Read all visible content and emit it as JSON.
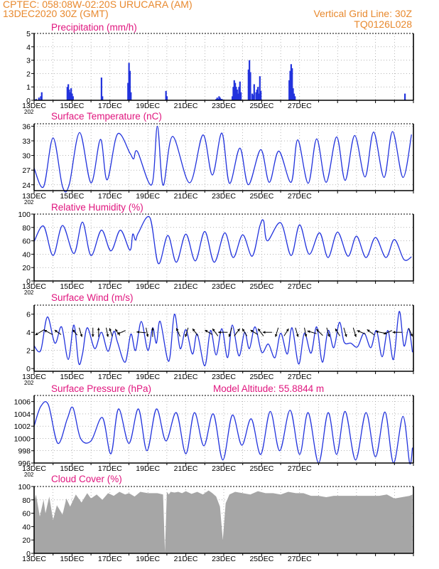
{
  "header": {
    "left_line1": "CPTEC:   058:08W-02:20S   URUCARA (AM)",
    "left_line2": "13DEC2020 30Z (GMT)",
    "right_line1": "Vertical Grid Line: 30Z",
    "right_line2": "TQ0126L028"
  },
  "colors": {
    "line": "#2233dd",
    "bar": "#2233dd",
    "cloud": "#a6a6a6",
    "title": "#e0157e",
    "header": "#e8892e",
    "grid": "#888888"
  },
  "x_tick_labels": [
    "13DEC",
    "15DEC",
    "17DEC",
    "19DEC",
    "21DEC",
    "23DEC",
    "25DEC",
    "27DEC"
  ],
  "x_year_stub": "202",
  "chart_data": [
    {
      "type": "bar",
      "title": "Precipitation (mm/h)",
      "ylim": [
        0,
        5
      ],
      "yticks": [
        "0",
        "1",
        "2",
        "3",
        "4",
        "5"
      ],
      "x": [
        0.1,
        0.25,
        0.35,
        0.4,
        1.75,
        1.8,
        1.85,
        1.9,
        1.95,
        2.0,
        2.05,
        3.55,
        3.6,
        4.95,
        5.0,
        5.05,
        5.1,
        6.95,
        7.0,
        9.6,
        9.65,
        9.7,
        9.75,
        9.8,
        9.85,
        9.9,
        10.45,
        10.5,
        10.55,
        10.6,
        10.65,
        10.7,
        10.75,
        10.8,
        10.85,
        10.9,
        11.3,
        11.35,
        11.4,
        11.5,
        11.55,
        11.6,
        11.7,
        11.75,
        11.8,
        11.85,
        11.9,
        11.95,
        13.45,
        13.5,
        13.55,
        13.6,
        13.65,
        13.7,
        13.75,
        19.55
      ],
      "values": [
        0.1,
        0.2,
        0.3,
        0.6,
        1.0,
        1.2,
        0.8,
        0.6,
        0.9,
        0.5,
        0.3,
        1.7,
        0.3,
        1.3,
        2.8,
        2.2,
        0.6,
        0.7,
        0.3,
        0.1,
        0.2,
        0.1,
        0.3,
        0.2,
        0.1,
        0.1,
        0.3,
        1.0,
        1.5,
        1.3,
        1.0,
        0.8,
        0.5,
        1.0,
        1.4,
        0.6,
        2.3,
        3.0,
        2.1,
        0.5,
        0.4,
        1.2,
        0.6,
        0.8,
        1.0,
        0.5,
        1.8,
        0.7,
        1.5,
        2.2,
        2.7,
        2.4,
        0.9,
        0.5,
        0.3,
        0.5
      ]
    },
    {
      "type": "line",
      "title": "Surface Temperature (nC)",
      "ylim": [
        22.8,
        36.5
      ],
      "yticks": [
        "24",
        "27",
        "30",
        "33",
        "36"
      ],
      "ytick_values": [
        24,
        27,
        30,
        33,
        36
      ],
      "x": [
        0,
        0.5,
        1,
        1.5,
        1.85,
        2.4,
        3,
        3.5,
        3.85,
        4.4,
        5.05,
        5.25,
        5.45,
        6.2,
        6.5,
        6.8,
        7.3,
        8.2,
        8.9,
        9.4,
        9.9,
        10.3,
        10.85,
        11.3,
        11.95,
        12.4,
        12.9,
        13.55,
        13.9,
        14.45,
        14.9,
        15.4,
        15.95,
        16.4,
        16.9,
        17.45,
        17.9,
        18.45,
        18.9,
        19.45,
        19.9
      ],
      "values": [
        27.4,
        23.6,
        33.6,
        23.6,
        24.0,
        34.7,
        24.4,
        33.3,
        25.0,
        34.4,
        30.5,
        29.3,
        30.8,
        24.0,
        36.0,
        23.9,
        33.9,
        24.4,
        34.2,
        26.0,
        34.6,
        24.3,
        31.5,
        24.0,
        31.2,
        24.5,
        30.9,
        24.5,
        33.2,
        24.3,
        33.4,
        24.5,
        33.8,
        24.9,
        34.1,
        25.6,
        34.8,
        25.5,
        34.9,
        25.5,
        34.3
      ]
    },
    {
      "type": "line",
      "title": "Relative Humidity (%)",
      "ylim": [
        0,
        100
      ],
      "yticks": [
        "0",
        "20",
        "40",
        "60",
        "80",
        "100"
      ],
      "x": [
        0,
        0.5,
        1.0,
        1.5,
        2.1,
        2.55,
        3.0,
        3.55,
        4.05,
        4.55,
        5.05,
        5.2,
        5.35,
        5.5,
        6.1,
        6.55,
        7.05,
        7.5,
        8.0,
        8.5,
        9.0,
        9.5,
        10.05,
        10.5,
        11.0,
        11.5,
        11.9,
        12.1,
        12.3,
        13.0,
        13.55,
        14.0,
        14.5,
        15.05,
        15.5,
        16.0,
        16.55,
        17.0,
        17.5,
        18.0,
        18.55,
        19.0,
        19.5,
        19.9
      ],
      "values": [
        59,
        82,
        38,
        83,
        41,
        88,
        38,
        76,
        45,
        76,
        46,
        70,
        61,
        72,
        95,
        26,
        68,
        28,
        70,
        30,
        74,
        28,
        72,
        35,
        69,
        37,
        82,
        90,
        60,
        87,
        38,
        84,
        40,
        72,
        35,
        73,
        37,
        67,
        35,
        65,
        35,
        62,
        32,
        36
      ]
    },
    {
      "type": "line",
      "title": "Surface Wind (m/s)",
      "ylim": [
        -0.3,
        7.0
      ],
      "yticks": [
        "0",
        "2",
        "4",
        "6"
      ],
      "x": [
        0,
        0.35,
        0.7,
        1.1,
        1.45,
        1.8,
        2.1,
        2.35,
        2.55,
        2.8,
        3.2,
        3.55,
        3.9,
        4.2,
        4.4,
        4.8,
        5.1,
        5.35,
        5.65,
        6.0,
        6.25,
        6.45,
        6.65,
        7.1,
        7.4,
        7.7,
        8.0,
        8.35,
        8.6,
        9.0,
        9.3,
        9.6,
        9.9,
        10.2,
        10.45,
        10.8,
        11.1,
        11.35,
        11.65,
        12.0,
        12.35,
        12.7,
        13.0,
        13.35,
        13.6,
        13.95,
        14.25,
        14.6,
        14.9,
        15.2,
        15.5,
        15.8,
        16.1,
        16.35,
        16.7,
        17.05,
        17.4,
        17.75,
        18.05,
        18.35,
        18.65,
        18.95,
        19.25,
        19.5,
        19.75,
        19.95
      ],
      "values": [
        2.5,
        2.0,
        5.7,
        2.8,
        4.6,
        1.0,
        4.8,
        0.6,
        1.6,
        4.5,
        2.2,
        4.0,
        1.9,
        4.1,
        2.9,
        0.7,
        3.8,
        2.0,
        5.2,
        2.0,
        4.5,
        2.8,
        5.2,
        0.8,
        6.0,
        2.2,
        4.3,
        1.6,
        3.8,
        0.3,
        4.2,
        1.5,
        4.4,
        1.2,
        4.8,
        1.4,
        4.0,
        2.2,
        4.6,
        1.8,
        2.7,
        1.2,
        3.9,
        1.6,
        4.5,
        0.5,
        3.9,
        1.7,
        4.6,
        0.7,
        4.2,
        2.3,
        5.1,
        2.9,
        2.8,
        2.4,
        3.9,
        2.3,
        4.2,
        1.3,
        4.2,
        1.0,
        6.3,
        2.5,
        4.4,
        1.8
      ],
      "vectors": [
        {
          "x": 0.3,
          "u": -1,
          "v": -0.6
        },
        {
          "x": 0.75,
          "u": -0.9,
          "v": 0.5
        },
        {
          "x": 1.25,
          "u": -0.7,
          "v": 0.5
        },
        {
          "x": 2.15,
          "u": -0.5,
          "v": 0.6
        },
        {
          "x": 2.45,
          "u": 0.3,
          "v": -1
        },
        {
          "x": 3.1,
          "u": 0,
          "v": -1
        },
        {
          "x": 3.4,
          "u": 0,
          "v": 1
        },
        {
          "x": 3.85,
          "u": 0.2,
          "v": -1
        },
        {
          "x": 4.05,
          "u": -0.3,
          "v": 0.9
        },
        {
          "x": 4.4,
          "u": -0.5,
          "v": 0.7
        },
        {
          "x": 4.6,
          "u": -0.9,
          "v": -0.4
        },
        {
          "x": 5.65,
          "u": -1,
          "v": 0.1
        },
        {
          "x": 5.95,
          "u": 0.2,
          "v": -1
        },
        {
          "x": 6.25,
          "u": 0,
          "v": 1
        },
        {
          "x": 7.6,
          "u": -0.4,
          "v": 0.9
        },
        {
          "x": 8.05,
          "u": -0.3,
          "v": -1
        },
        {
          "x": 8.5,
          "u": -0.6,
          "v": 0.8
        },
        {
          "x": 9.2,
          "u": -0.8,
          "v": 0.5
        },
        {
          "x": 9.55,
          "u": -0.6,
          "v": 0.8
        },
        {
          "x": 9.95,
          "u": -1,
          "v": 0
        },
        {
          "x": 10.35,
          "u": -0.3,
          "v": -1
        },
        {
          "x": 10.7,
          "u": 0.6,
          "v": 0.8
        },
        {
          "x": 11.1,
          "u": -0.5,
          "v": 0.8
        },
        {
          "x": 11.6,
          "u": -0.8,
          "v": 0.5
        },
        {
          "x": 11.95,
          "u": -0.6,
          "v": 0.8
        },
        {
          "x": 12.3,
          "u": -1,
          "v": 0
        },
        {
          "x": 12.8,
          "u": -0.3,
          "v": -1
        },
        {
          "x": 13.3,
          "u": 0.5,
          "v": 0.8
        },
        {
          "x": 13.85,
          "u": 0.3,
          "v": -1
        },
        {
          "x": 14.3,
          "u": 0.2,
          "v": -1
        },
        {
          "x": 14.65,
          "u": -1,
          "v": 0.3
        },
        {
          "x": 15.05,
          "u": -0.7,
          "v": 0.7
        },
        {
          "x": 15.5,
          "u": 0.3,
          "v": -1
        },
        {
          "x": 16.0,
          "u": -0.5,
          "v": 0.8
        },
        {
          "x": 16.4,
          "u": 0.3,
          "v": -1
        },
        {
          "x": 16.9,
          "u": 0.3,
          "v": -1
        },
        {
          "x": 17.25,
          "u": -0.9,
          "v": 0.4
        },
        {
          "x": 17.75,
          "u": -0.8,
          "v": 0.6
        },
        {
          "x": 18.25,
          "u": -1,
          "v": 0.2
        },
        {
          "x": 18.65,
          "u": -0.9,
          "v": -0.4
        },
        {
          "x": 19.15,
          "u": -1,
          "v": 0
        },
        {
          "x": 19.85,
          "u": 0.4,
          "v": -0.9
        }
      ]
    },
    {
      "type": "line",
      "title": "Surface Pressure (hPa)",
      "annotation": "Model Altitude: 55.8844 m",
      "ylim": [
        996,
        1007
      ],
      "yticks": [
        "996",
        "998",
        "1000",
        "1002",
        "1004",
        "1006"
      ],
      "ytick_values": [
        996,
        998,
        1000,
        1002,
        1004,
        1006
      ],
      "x": [
        0,
        0.35,
        0.75,
        1.25,
        1.75,
        2.05,
        2.45,
        3.0,
        3.6,
        4.05,
        4.45,
        5.0,
        5.5,
        5.95,
        6.45,
        6.95,
        7.5,
        8.0,
        8.45,
        8.95,
        9.45,
        9.95,
        10.45,
        10.95,
        11.45,
        11.95,
        12.45,
        12.95,
        13.5,
        14.0,
        14.45,
        15.0,
        15.5,
        15.95,
        16.4,
        16.95,
        17.5,
        18.0,
        18.5,
        18.95,
        19.45,
        19.8,
        19.95
      ],
      "values": [
        1002.0,
        1005.2,
        1005.5,
        999.2,
        1003.2,
        1005.0,
        1000.0,
        999.6,
        1003.4,
        997.5,
        1004.8,
        999.2,
        1004.8,
        998.0,
        1004.8,
        999.6,
        1004.2,
        997.5,
        1004.2,
        998.8,
        1004.0,
        996.5,
        1003.8,
        998.9,
        1003.2,
        997.4,
        1004.4,
        998.0,
        1004.6,
        997.4,
        1004.2,
        996.0,
        1004.2,
        997.4,
        1004.4,
        996.5,
        1004.2,
        997.0,
        1004.3,
        996.0,
        1003.6,
        996.0,
        998.5
      ]
    },
    {
      "type": "area",
      "title": "Cloud Cover (%)",
      "ylim": [
        0,
        100
      ],
      "yticks": [
        "0",
        "20",
        "40",
        "60",
        "80",
        "100"
      ],
      "x": [
        0,
        0.1,
        0.3,
        0.5,
        0.6,
        0.8,
        1.0,
        1.2,
        1.5,
        1.7,
        1.9,
        2.2,
        2.5,
        2.8,
        3.0,
        3.3,
        3.6,
        3.9,
        4.2,
        4.5,
        4.8,
        5.0,
        5.3,
        5.6,
        6.0,
        6.5,
        6.8,
        6.9,
        7.0,
        7.1,
        7.2,
        7.4,
        7.6,
        7.8,
        8.0,
        8.3,
        8.6,
        8.9,
        9.2,
        9.4,
        9.6,
        9.8,
        9.95,
        10.1,
        10.3,
        10.6,
        11.0,
        11.4,
        11.8,
        12.2,
        12.6,
        13.0,
        13.4,
        13.8,
        14.2,
        14.6,
        15.0,
        15.4,
        15.8,
        16.2,
        16.6,
        17.0,
        17.4,
        17.8,
        18.2,
        18.6,
        19.0,
        19.4,
        19.8,
        19.95
      ],
      "values": [
        78,
        88,
        55,
        80,
        60,
        85,
        50,
        72,
        58,
        82,
        70,
        88,
        76,
        90,
        82,
        88,
        80,
        90,
        86,
        92,
        88,
        90,
        85,
        92,
        90,
        90,
        88,
        2,
        92,
        88,
        92,
        91,
        92,
        90,
        93,
        89,
        92,
        88,
        94,
        90,
        85,
        70,
        20,
        75,
        88,
        92,
        90,
        88,
        93,
        90,
        90,
        88,
        92,
        90,
        90,
        86,
        86,
        84,
        86,
        86,
        86,
        86,
        86,
        86,
        86,
        88,
        82,
        84,
        86,
        88
      ]
    }
  ]
}
